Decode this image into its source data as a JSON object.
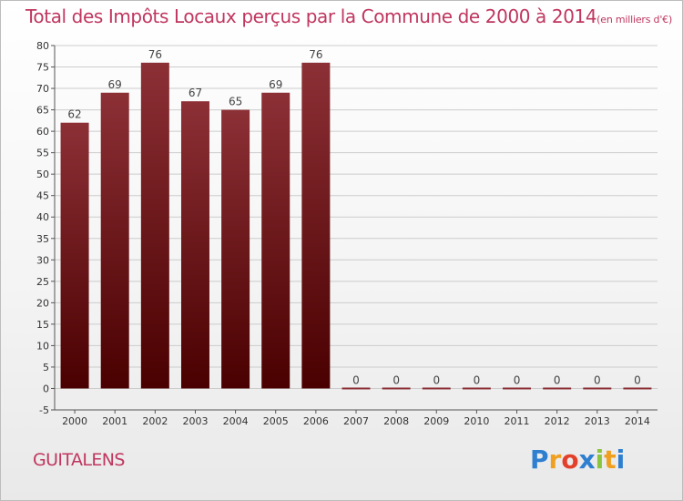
{
  "title": "Total des Impôts Locaux perçus par la Commune de 2000 à 2014",
  "unit": "(en milliers d'€)",
  "commune": "GUITALENS",
  "logo": {
    "letters": [
      "P",
      "r",
      "o",
      "x",
      "i",
      "t",
      "i"
    ],
    "colors": [
      "#2f7fd1",
      "#f0a020",
      "#e2402a",
      "#2f7fd1",
      "#8ac540",
      "#f0a020",
      "#2f7fd1"
    ]
  },
  "colors": {
    "accent": "#c0365f",
    "bar_top": "#8c3036",
    "bar_bottom": "#4a0000",
    "grid": "#cccccc"
  },
  "chart_data": {
    "type": "bar",
    "title": "Total des Impôts Locaux perçus par la Commune de 2000 à 2014",
    "xlabel": "",
    "ylabel": "",
    "categories": [
      "2000",
      "2001",
      "2002",
      "2003",
      "2004",
      "2005",
      "2006",
      "2007",
      "2008",
      "2009",
      "2010",
      "2011",
      "2012",
      "2013",
      "2014"
    ],
    "values": [
      62,
      69,
      76,
      67,
      65,
      69,
      76,
      0,
      0,
      0,
      0,
      0,
      0,
      0,
      0
    ],
    "ylim": [
      -5,
      80
    ],
    "yticks": [
      -5,
      0,
      5,
      10,
      15,
      20,
      25,
      30,
      35,
      40,
      45,
      50,
      55,
      60,
      65,
      70,
      75,
      80
    ],
    "grid": true
  }
}
